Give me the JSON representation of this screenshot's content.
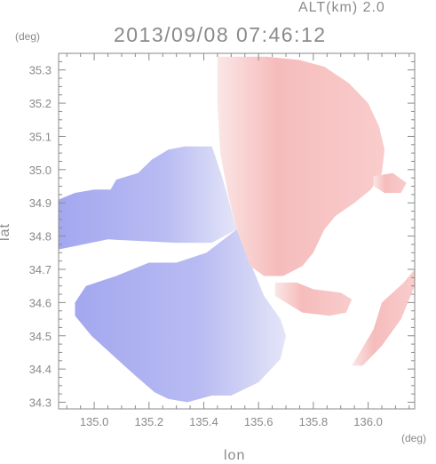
{
  "header": {
    "alt_label": "ALT(km) 2.0",
    "timestamp": "2013/09/08 07:46:12"
  },
  "axes": {
    "y_unit": "(deg)",
    "x_unit": "(deg)",
    "x_label": "lon",
    "y_label": "lat"
  },
  "chart_data": {
    "type": "heatmap",
    "title": "2013/09/08 07:46:12",
    "xlabel": "lon",
    "ylabel": "lat",
    "xlim": [
      134.87,
      136.17
    ],
    "ylim": [
      34.28,
      35.35
    ],
    "x_ticks": [
      135.0,
      135.2,
      135.4,
      135.6,
      135.8,
      136.0
    ],
    "y_ticks": [
      34.3,
      34.4,
      34.5,
      34.6,
      34.7,
      34.8,
      34.9,
      35.0,
      35.1,
      35.2,
      35.3
    ],
    "x_tick_labels": [
      "135.0",
      "135.2",
      "135.4",
      "135.6",
      "135.8",
      "136.0"
    ],
    "y_tick_labels": [
      "34.3",
      "34.4",
      "34.5",
      "34.6",
      "34.7",
      "34.8",
      "34.9",
      "35.0",
      "35.1",
      "35.2",
      "35.3"
    ],
    "radar_center": [
      135.52,
      34.82
    ],
    "colors": {
      "toward": "#a8acf0",
      "away": "#f6b8b8",
      "neutral": "#f4f4fc"
    },
    "regions": [
      {
        "name": "west-blue-sector",
        "polarity": "toward",
        "polygon": [
          [
            134.87,
            34.91
          ],
          [
            134.93,
            34.93
          ],
          [
            135.0,
            34.94
          ],
          [
            135.06,
            34.94
          ],
          [
            135.08,
            34.97
          ],
          [
            135.16,
            34.99
          ],
          [
            135.21,
            35.03
          ],
          [
            135.27,
            35.06
          ],
          [
            135.33,
            35.07
          ],
          [
            135.43,
            35.07
          ],
          [
            135.47,
            34.97
          ],
          [
            135.52,
            34.82
          ],
          [
            135.43,
            34.78
          ],
          [
            135.3,
            34.78
          ],
          [
            135.05,
            34.79
          ],
          [
            134.87,
            34.76
          ]
        ]
      },
      {
        "name": "southwest-blue-sector",
        "polarity": "toward",
        "polygon": [
          [
            135.52,
            34.82
          ],
          [
            135.41,
            34.75
          ],
          [
            135.3,
            34.72
          ],
          [
            135.2,
            34.72
          ],
          [
            135.08,
            34.68
          ],
          [
            134.97,
            34.65
          ],
          [
            134.93,
            34.6
          ],
          [
            134.93,
            34.56
          ],
          [
            134.99,
            34.5
          ],
          [
            135.07,
            34.44
          ],
          [
            135.15,
            34.38
          ],
          [
            135.22,
            34.33
          ],
          [
            135.27,
            34.31
          ],
          [
            135.34,
            34.3
          ],
          [
            135.43,
            34.32
          ],
          [
            135.5,
            34.32
          ],
          [
            135.6,
            34.36
          ],
          [
            135.68,
            34.43
          ],
          [
            135.7,
            34.5
          ],
          [
            135.68,
            34.55
          ],
          [
            135.62,
            34.62
          ]
        ]
      },
      {
        "name": "east-red-sector",
        "polarity": "away",
        "polygon": [
          [
            135.45,
            35.34
          ],
          [
            135.53,
            35.34
          ],
          [
            135.63,
            35.34
          ],
          [
            135.75,
            35.33
          ],
          [
            135.84,
            35.31
          ],
          [
            135.93,
            35.26
          ],
          [
            136.0,
            35.2
          ],
          [
            136.04,
            35.13
          ],
          [
            136.06,
            35.06
          ],
          [
            136.05,
            34.99
          ],
          [
            136.01,
            34.94
          ],
          [
            135.95,
            34.9
          ],
          [
            135.88,
            34.86
          ],
          [
            135.84,
            34.82
          ],
          [
            135.8,
            34.75
          ],
          [
            135.76,
            34.71
          ],
          [
            135.69,
            34.68
          ],
          [
            135.62,
            34.68
          ],
          [
            135.57,
            34.71
          ],
          [
            135.52,
            34.82
          ],
          [
            135.49,
            34.92
          ],
          [
            135.46,
            35.05
          ],
          [
            135.45,
            35.2
          ]
        ]
      },
      {
        "name": "southeast-red-band",
        "polarity": "away",
        "polygon": [
          [
            135.66,
            34.66
          ],
          [
            135.74,
            34.66
          ],
          [
            135.8,
            34.64
          ],
          [
            135.9,
            34.63
          ],
          [
            135.94,
            34.61
          ],
          [
            135.92,
            34.57
          ],
          [
            135.86,
            34.56
          ],
          [
            135.76,
            34.57
          ],
          [
            135.7,
            34.6
          ],
          [
            135.66,
            34.62
          ]
        ]
      },
      {
        "name": "far-east-red-arc",
        "polarity": "away",
        "polygon": [
          [
            136.05,
            34.6
          ],
          [
            136.13,
            34.66
          ],
          [
            136.17,
            34.7
          ],
          [
            136.17,
            34.65
          ],
          [
            136.12,
            34.55
          ],
          [
            136.05,
            34.47
          ],
          [
            135.98,
            34.41
          ],
          [
            135.94,
            34.41
          ],
          [
            135.97,
            34.45
          ],
          [
            136.02,
            34.52
          ]
        ]
      },
      {
        "name": "east-red-islands",
        "polarity": "away",
        "polygon": [
          [
            136.02,
            34.98
          ],
          [
            136.09,
            34.99
          ],
          [
            136.14,
            34.96
          ],
          [
            136.12,
            34.93
          ],
          [
            136.06,
            34.93
          ],
          [
            136.02,
            34.95
          ]
        ]
      }
    ]
  }
}
